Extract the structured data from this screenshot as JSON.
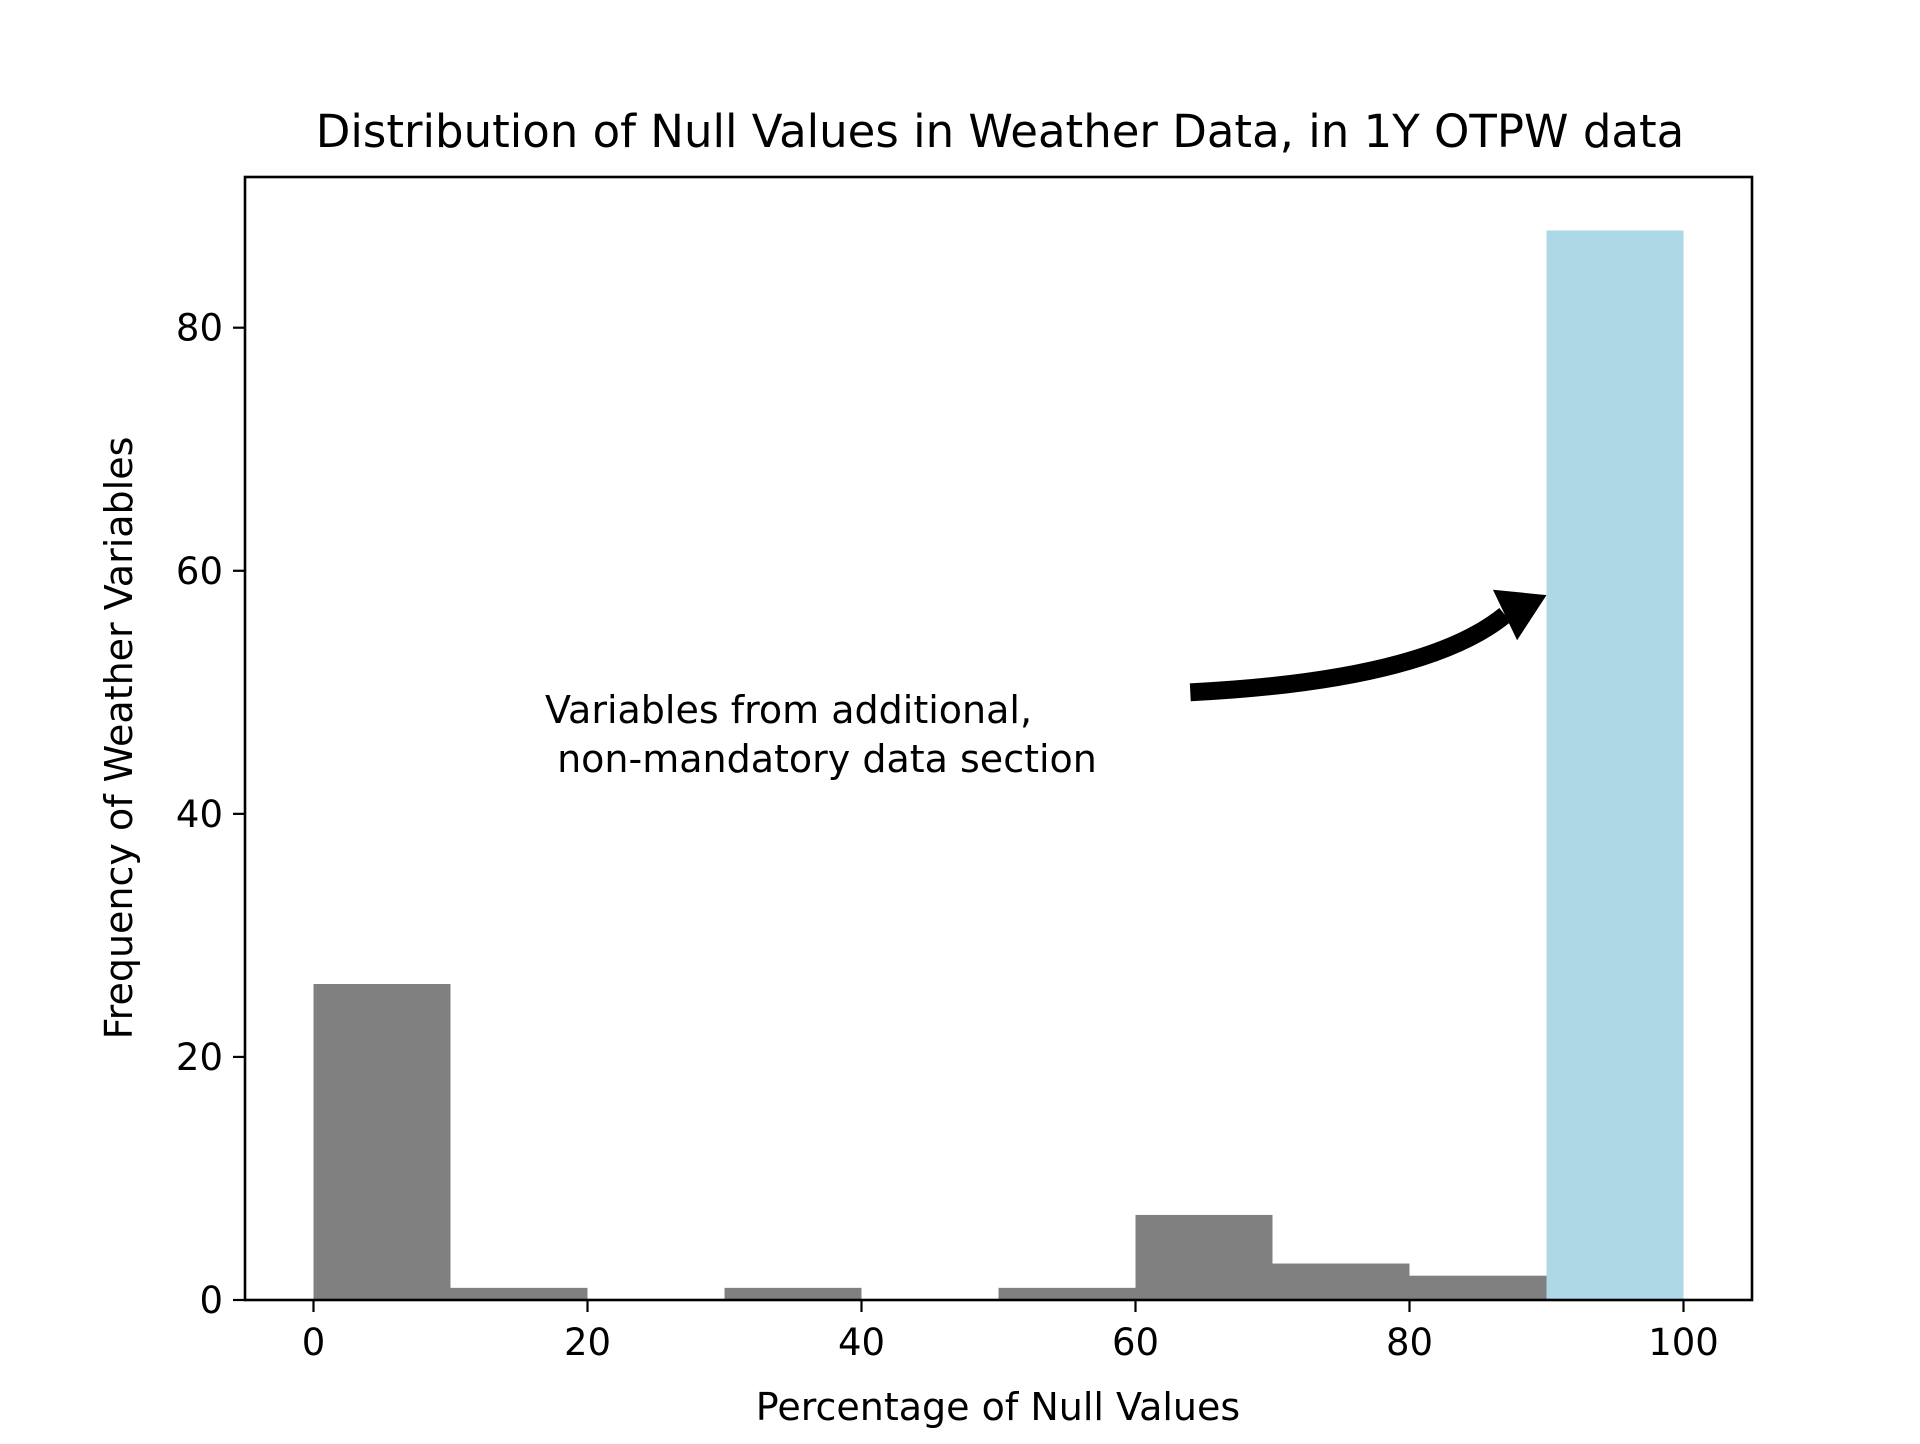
{
  "chart_data": {
    "type": "bar",
    "title": "Distribution of Null Values in Weather Data, in 1Y OTPW data",
    "xlabel": "Percentage of Null Values",
    "ylabel": "Frequency of Weather Variables",
    "xlim": [
      -5,
      105
    ],
    "ylim": [
      0,
      92.4
    ],
    "x_ticks": [
      "0",
      "20",
      "40",
      "60",
      "80",
      "100"
    ],
    "y_ticks": [
      "0",
      "20",
      "40",
      "60",
      "80"
    ],
    "bins": [
      {
        "x0": 0,
        "x1": 10,
        "value": 26,
        "color": "#808080"
      },
      {
        "x0": 10,
        "x1": 20,
        "value": 1,
        "color": "#808080"
      },
      {
        "x0": 20,
        "x1": 30,
        "value": 0,
        "color": "#808080"
      },
      {
        "x0": 30,
        "x1": 40,
        "value": 1,
        "color": "#808080"
      },
      {
        "x0": 40,
        "x1": 50,
        "value": 0,
        "color": "#808080"
      },
      {
        "x0": 50,
        "x1": 60,
        "value": 1,
        "color": "#808080"
      },
      {
        "x0": 60,
        "x1": 70,
        "value": 7,
        "color": "#808080"
      },
      {
        "x0": 70,
        "x1": 80,
        "value": 3,
        "color": "#808080"
      },
      {
        "x0": 80,
        "x1": 90,
        "value": 2,
        "color": "#808080"
      },
      {
        "x0": 90,
        "x1": 100,
        "value": 88,
        "color": "#add8e6"
      }
    ],
    "annotation": {
      "line1": "Variables from additional,",
      "line2": " non-mandatory data section",
      "arrow_from": [
        64,
        50
      ],
      "arrow_to": [
        90,
        58
      ]
    },
    "grid": false,
    "legend": "none"
  }
}
